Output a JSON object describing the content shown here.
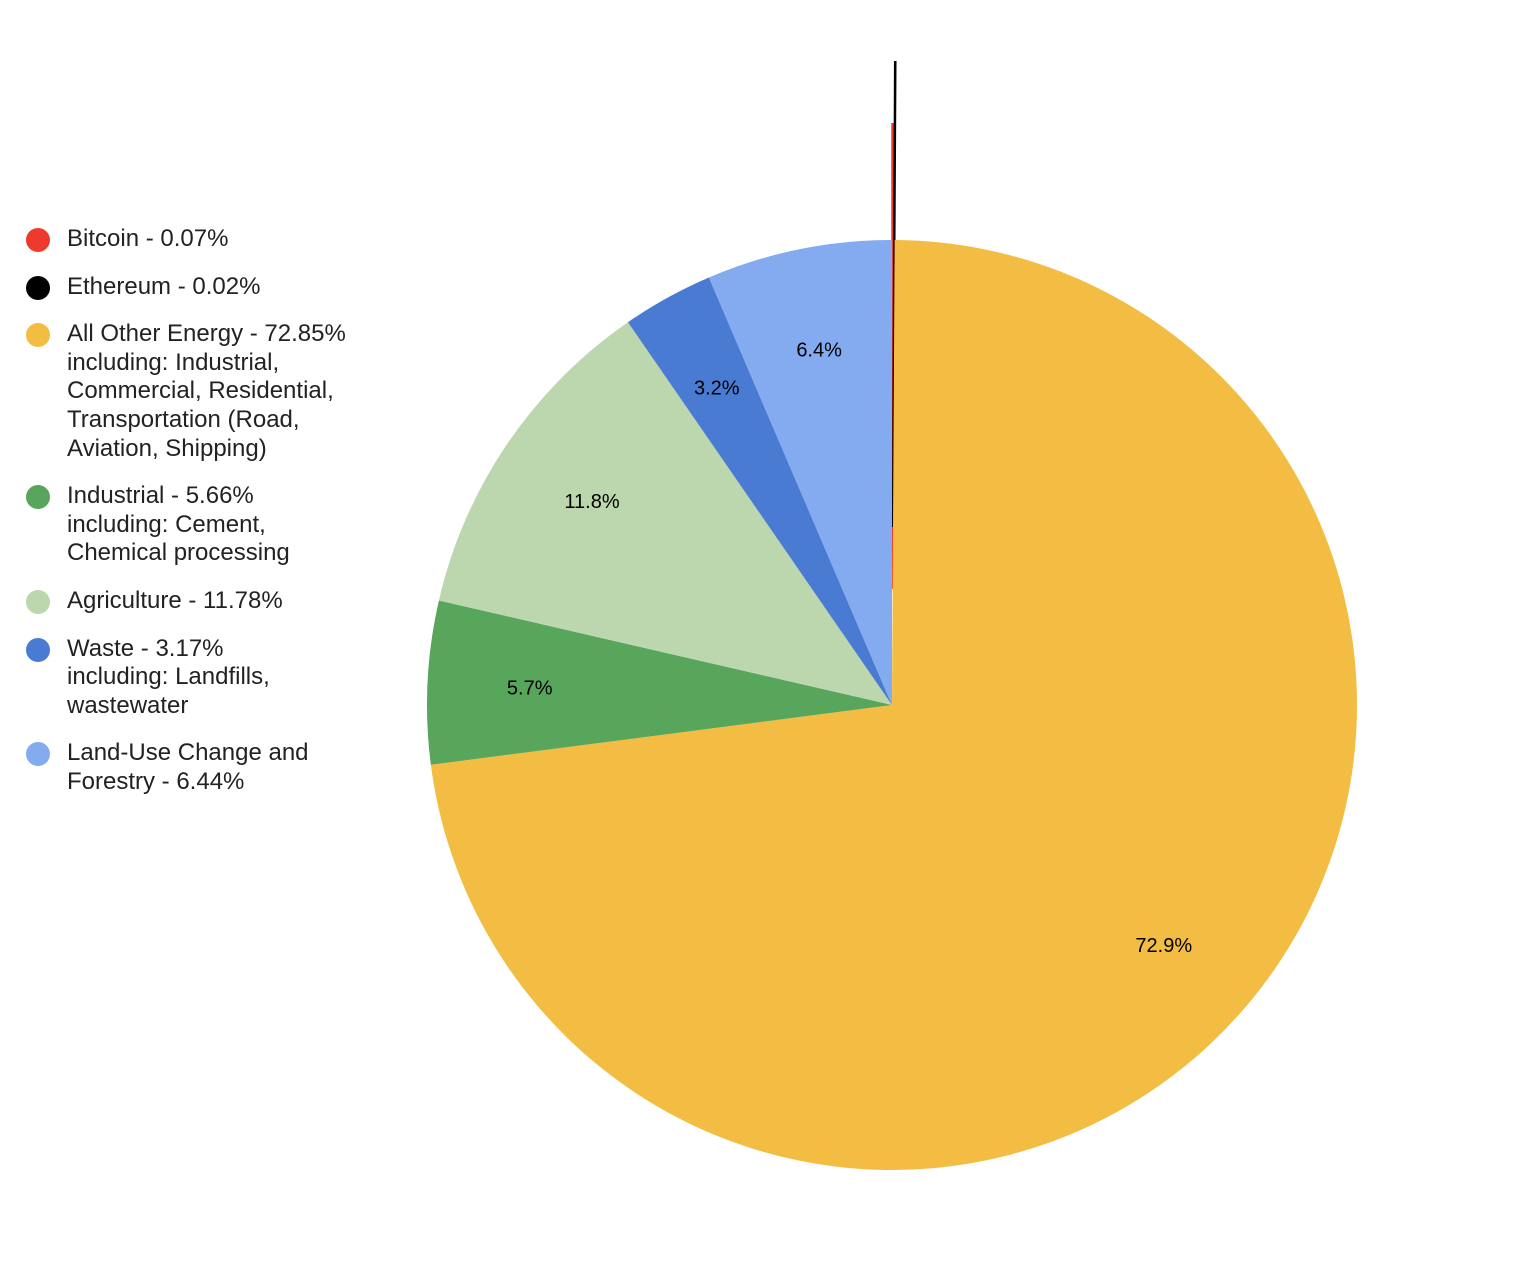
{
  "chart_data": {
    "type": "pie",
    "start_angle": "top, clockwise",
    "legend_position": "left",
    "slices": [
      {
        "name": "Bitcoin",
        "legend": "Bitcoin - 0.07%",
        "value": 0.07,
        "color": "#ee3a2c",
        "exploded": true,
        "label": ""
      },
      {
        "name": "Ethereum",
        "legend": "Ethereum - 0.02%",
        "value": 0.02,
        "color": "#000000",
        "exploded": true,
        "label": ""
      },
      {
        "name": "All Other Energy",
        "legend": "All Other Energy - 72.85%\nincluding: Industrial,\nCommercial, Residential,\nTransportation (Road,\nAviation, Shipping)",
        "value": 72.85,
        "color": "#f2bd42",
        "label": "72.9%"
      },
      {
        "name": "Industrial",
        "legend": "Industrial - 5.66%\nincluding: Cement,\nChemical processing",
        "value": 5.66,
        "color": "#58a55c",
        "label": "5.7%"
      },
      {
        "name": "Agriculture",
        "legend": "Agriculture - 11.78%",
        "value": 11.78,
        "color": "#bcd6ad",
        "label": "11.8%"
      },
      {
        "name": "Waste",
        "legend": "Waste - 3.17%\nincluding: Landfills,\nwastewater",
        "value": 3.17,
        "color": "#4a7bd3",
        "label": "3.2%"
      },
      {
        "name": "Land-Use Change and Forestry",
        "legend": "Land-Use Change and\nForestry - 6.44%",
        "value": 6.44,
        "color": "#84aaf0",
        "label": "6.4%"
      }
    ]
  }
}
